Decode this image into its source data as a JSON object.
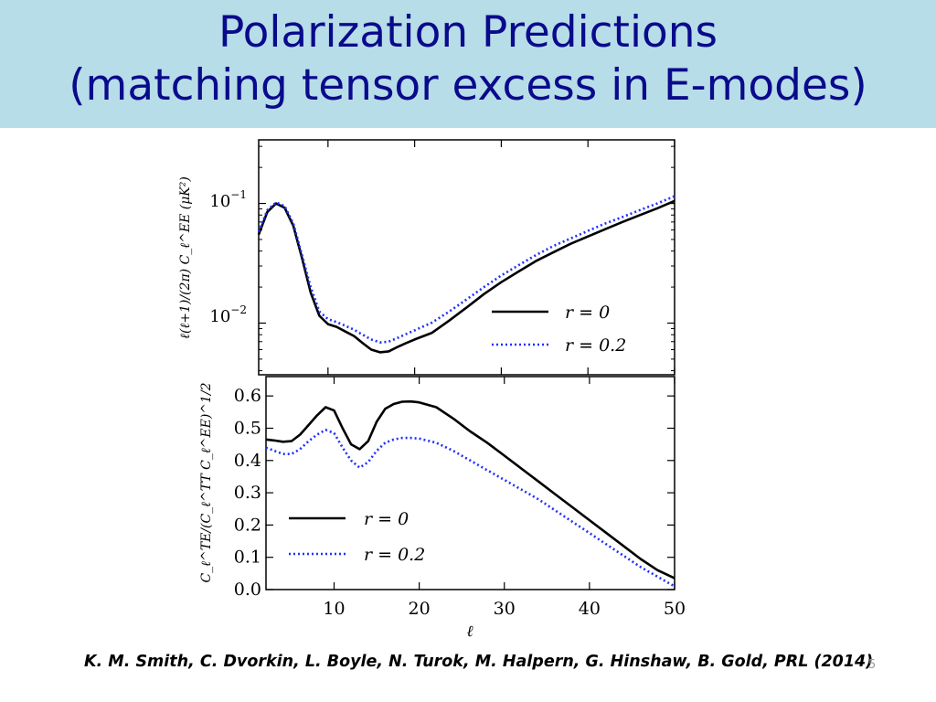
{
  "slide": {
    "title_line1": "Polarization Predictions",
    "title_line2": "(matching tensor excess in E-modes)",
    "citation": "K. M. Smith, C. Dvorkin, L. Boyle, N. Turok, M. Halpern, G. Hinshaw, B. Gold, PRL (2014)",
    "slide_number": "5"
  },
  "colors": {
    "title_band": "#b7dde8",
    "title_text": "#0a0a8c",
    "series_r0": "#000000",
    "series_r02": "#1f2fff"
  },
  "chart_data": [
    {
      "type": "line",
      "yscale": "log",
      "ylabel": "ℓ(ℓ+1)/(2π) C_ℓ^EE (μK²)",
      "xlabel": "",
      "xlim": [
        2,
        50
      ],
      "ylim": [
        0.0037,
        0.34
      ],
      "ytick_labels": [
        {
          "base": "10",
          "exp": "−1",
          "value": 0.1
        },
        {
          "base": "10",
          "exp": "−2",
          "value": 0.01
        }
      ],
      "legend": "bottom-right",
      "legend_labels": [
        "r = 0",
        "r = 0.2"
      ],
      "x": [
        2,
        3,
        4,
        5,
        6,
        7,
        8,
        9,
        10,
        11,
        12,
        13,
        14,
        15,
        16,
        17,
        18,
        19,
        20,
        22,
        24,
        26,
        28,
        30,
        32,
        34,
        36,
        38,
        40,
        42,
        44,
        46,
        48,
        50
      ],
      "series": [
        {
          "name": "r = 0",
          "style": "solid",
          "values": [
            0.055,
            0.085,
            0.1,
            0.092,
            0.065,
            0.035,
            0.018,
            0.0115,
            0.0098,
            0.0093,
            0.0085,
            0.0078,
            0.0068,
            0.006,
            0.0057,
            0.0058,
            0.0063,
            0.0068,
            0.0073,
            0.0083,
            0.0105,
            0.0135,
            0.0175,
            0.022,
            0.027,
            0.033,
            0.039,
            0.046,
            0.053,
            0.061,
            0.07,
            0.08,
            0.091,
            0.105
          ]
        },
        {
          "name": "r = 0.2",
          "style": "dotted",
          "values": [
            0.058,
            0.088,
            0.102,
            0.095,
            0.068,
            0.037,
            0.02,
            0.0125,
            0.0108,
            0.0102,
            0.0095,
            0.0088,
            0.008,
            0.0073,
            0.0069,
            0.007,
            0.0075,
            0.0081,
            0.0087,
            0.0101,
            0.0125,
            0.0158,
            0.02,
            0.025,
            0.0305,
            0.037,
            0.044,
            0.051,
            0.059,
            0.068,
            0.077,
            0.088,
            0.1,
            0.115
          ]
        }
      ]
    },
    {
      "type": "line",
      "ylabel": "C_ℓ^TE/(C_ℓ^TT C_ℓ^EE)^1/2",
      "xlabel": "ℓ",
      "xlim": [
        2,
        50
      ],
      "ylim": [
        0.0,
        0.66
      ],
      "xticks": [
        10,
        20,
        30,
        40,
        50
      ],
      "yticks": [
        0.0,
        0.1,
        0.2,
        0.3,
        0.4,
        0.5,
        0.6
      ],
      "ytick_labels": [
        "0.0",
        "0.1",
        "0.2",
        "0.3",
        "0.4",
        "0.5",
        "0.6"
      ],
      "xtick_labels": [
        "10",
        "20",
        "30",
        "40",
        "50"
      ],
      "legend": "bottom-left",
      "legend_labels": [
        "r = 0",
        "r = 0.2"
      ],
      "x": [
        2,
        3,
        4,
        5,
        6,
        7,
        8,
        9,
        10,
        11,
        12,
        13,
        14,
        15,
        16,
        17,
        18,
        19,
        20,
        22,
        24,
        26,
        28,
        30,
        32,
        34,
        36,
        38,
        40,
        42,
        44,
        46,
        48,
        50
      ],
      "series": [
        {
          "name": "r = 0",
          "style": "solid",
          "values": [
            0.465,
            0.462,
            0.458,
            0.46,
            0.48,
            0.51,
            0.54,
            0.565,
            0.555,
            0.5,
            0.45,
            0.435,
            0.46,
            0.52,
            0.56,
            0.575,
            0.582,
            0.583,
            0.58,
            0.565,
            0.53,
            0.49,
            0.455,
            0.415,
            0.375,
            0.335,
            0.295,
            0.255,
            0.215,
            0.175,
            0.135,
            0.095,
            0.06,
            0.035
          ]
        },
        {
          "name": "r = 0.2",
          "style": "dotted",
          "values": [
            0.44,
            0.43,
            0.42,
            0.42,
            0.435,
            0.46,
            0.48,
            0.495,
            0.485,
            0.44,
            0.4,
            0.378,
            0.395,
            0.43,
            0.455,
            0.465,
            0.47,
            0.47,
            0.468,
            0.455,
            0.43,
            0.4,
            0.37,
            0.34,
            0.31,
            0.28,
            0.245,
            0.21,
            0.175,
            0.14,
            0.105,
            0.07,
            0.04,
            0.01
          ]
        }
      ]
    }
  ]
}
